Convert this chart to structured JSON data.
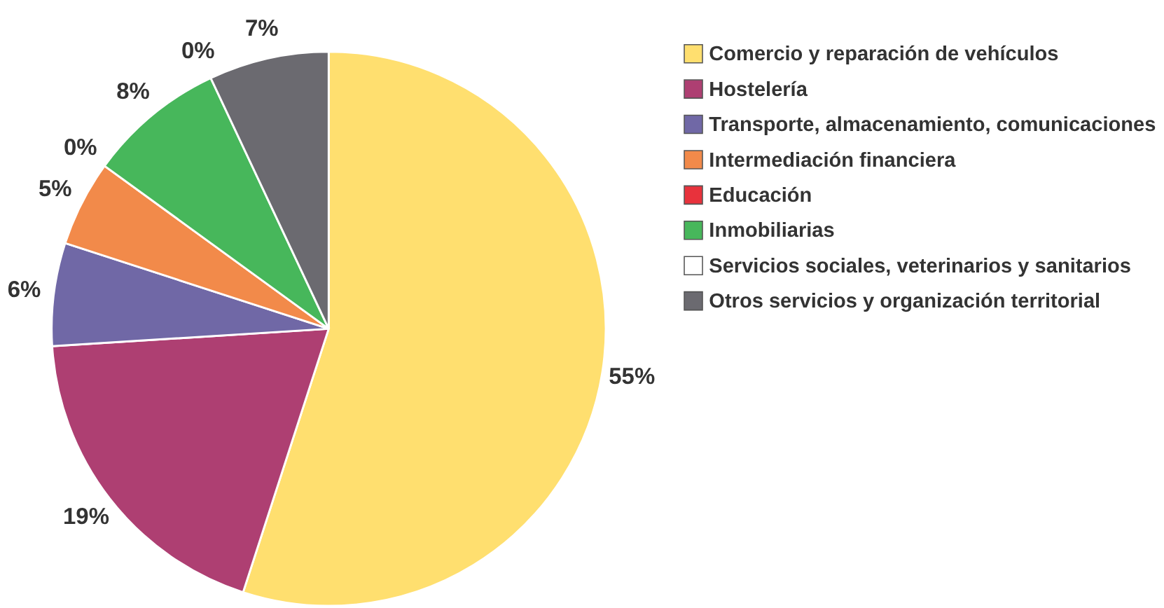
{
  "chart_data": {
    "type": "pie",
    "categories": [
      "Comercio y reparación de vehículos",
      "Hostelería",
      "Transporte, almacenamiento, comunicaciones",
      "Intermediación financiera",
      "Educación",
      "Inmobiliarias",
      "Servicios sociales, veterinarios y sanitarios",
      "Otros servicios y organización territorial"
    ],
    "values": [
      55,
      19,
      6,
      5,
      0,
      8,
      0,
      7
    ],
    "colors": [
      "#ffdf6f",
      "#ae3f72",
      "#7068a6",
      "#f28a4a",
      "#e8323c",
      "#47b75b",
      "#ffffff",
      "#6b6a70"
    ],
    "value_labels": [
      "55%",
      "19%",
      "6%",
      "5%",
      "0%",
      "8%",
      "0%",
      "7%"
    ],
    "legend": "right"
  }
}
